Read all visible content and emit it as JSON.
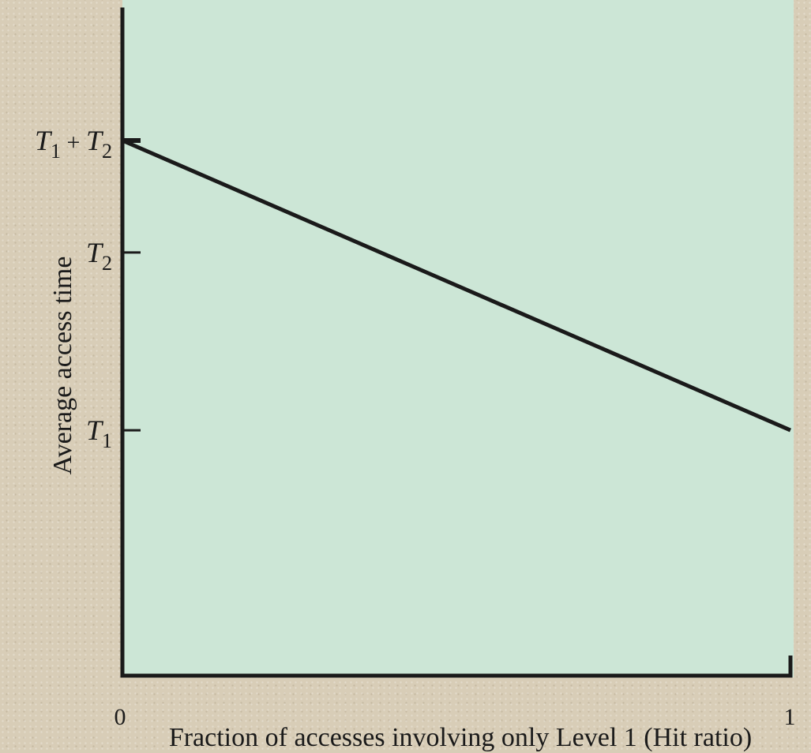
{
  "chart_data": {
    "type": "line",
    "xlabel": "Fraction of accesses involving only Level 1 (Hit ratio)",
    "ylabel": "Average access time",
    "x_ticks": [
      "0",
      "1"
    ],
    "xlim": [
      0,
      1
    ],
    "y_ticks": [
      {
        "value": 0.63,
        "symbol": "T",
        "subscript": "1",
        "op": "",
        "symbol2": "",
        "subscript2": ""
      },
      {
        "value": 1.63,
        "symbol": "T",
        "subscript": "2",
        "op": "",
        "symbol2": "",
        "subscript2": ""
      },
      {
        "value": 2.26,
        "symbol": "T",
        "subscript": "1",
        "op": "+",
        "symbol2": "T",
        "subscript2": "2"
      }
    ],
    "ylim": [
      -0.75,
      3.05
    ],
    "series": [
      {
        "x": [
          0,
          1
        ],
        "y": [
          2.26,
          0.63
        ]
      }
    ],
    "grid": false,
    "colors": {
      "plot_background": "#cce6d6",
      "line": "#1a1a1a",
      "page_background": "#d8cdb7"
    }
  }
}
